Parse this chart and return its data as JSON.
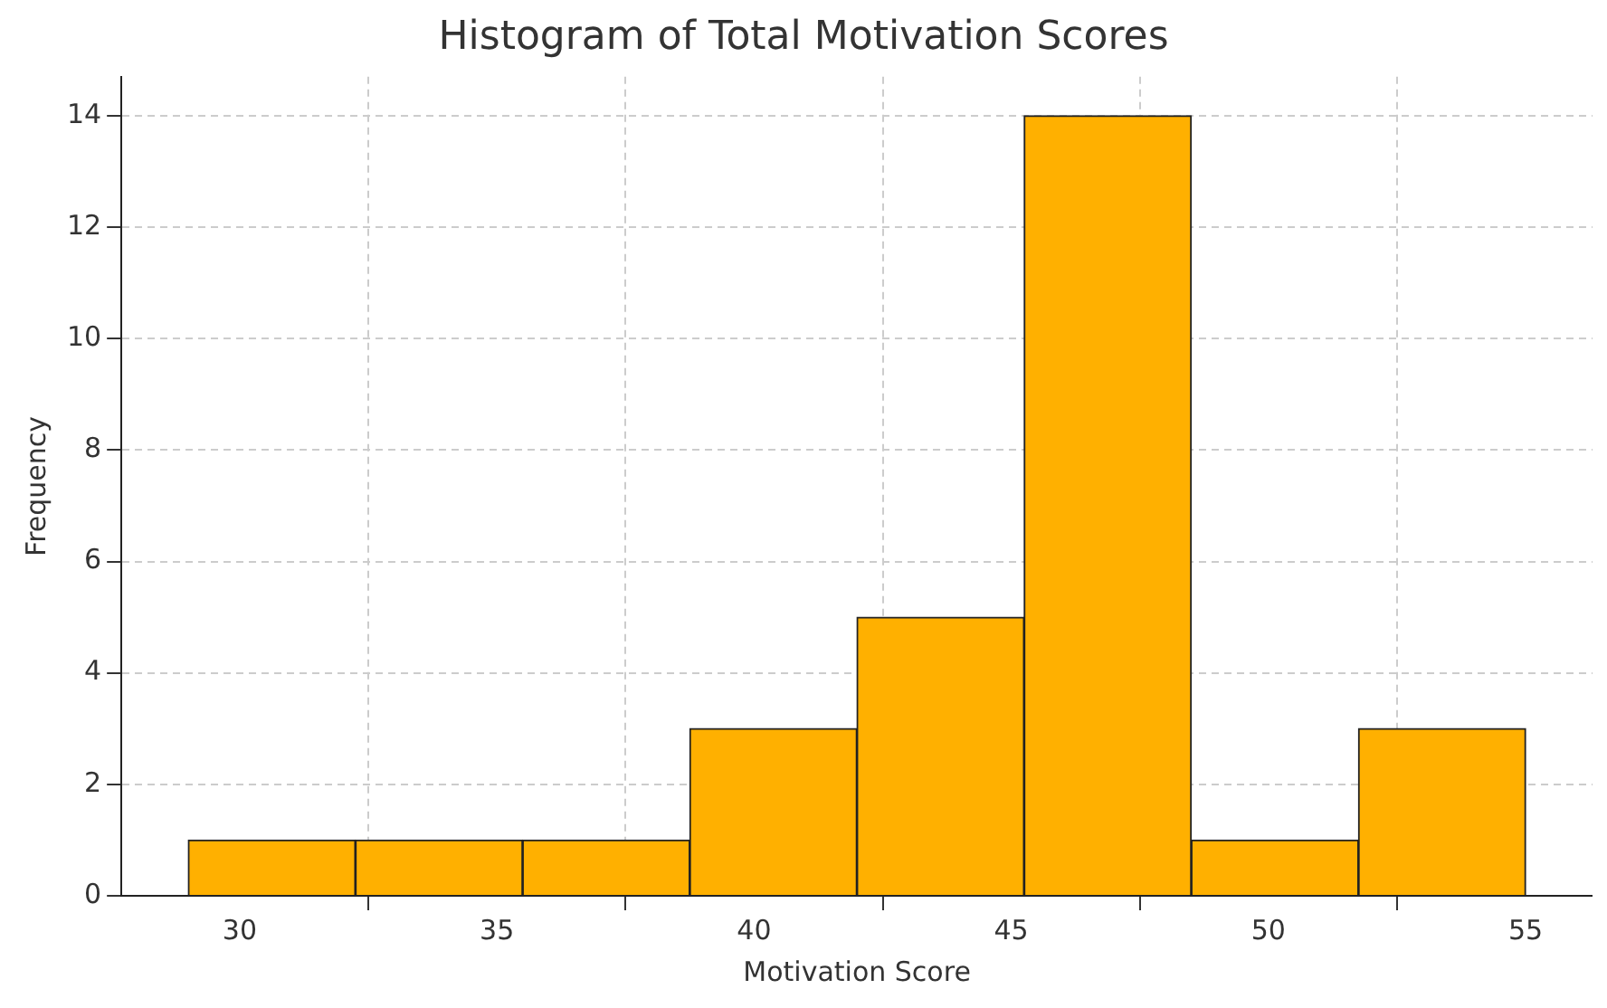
{
  "chart_data": {
    "type": "histogram",
    "title": "Histogram of Total Motivation Scores",
    "xlabel": "Motivation Score",
    "ylabel": "Frequency",
    "bins": [
      29,
      32.25,
      35.5,
      38.75,
      42,
      45.25,
      48.5,
      51.75,
      55
    ],
    "values": [
      1,
      1,
      1,
      3,
      5,
      14,
      1,
      3
    ],
    "color": "#ffb000",
    "xlim": [
      27.7,
      56.3
    ],
    "xticks": [
      30,
      35,
      40,
      45,
      50,
      55
    ],
    "ylim": [
      0,
      14.7
    ],
    "yticks": [
      0,
      2,
      4,
      6,
      8,
      10,
      12,
      14
    ],
    "grid": true,
    "legend": false
  }
}
